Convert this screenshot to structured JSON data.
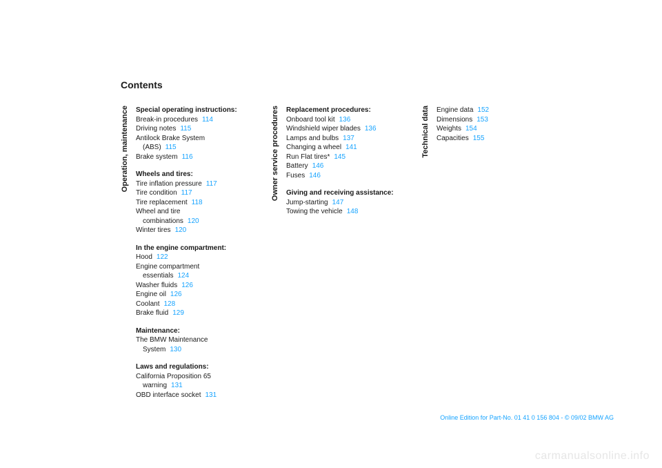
{
  "title": "Contents",
  "col1": {
    "vlabel": "Operation, maintenance",
    "sections": [
      {
        "head": "Special operating instructions:",
        "items": [
          {
            "label": "Break-in procedures",
            "page": "114"
          },
          {
            "label": "Driving notes",
            "page": "115"
          },
          {
            "label": "Antilock Brake System",
            "cont": "(ABS)",
            "page": "115"
          },
          {
            "label": "Brake system",
            "page": "116"
          }
        ]
      },
      {
        "head": "Wheels and tires:",
        "items": [
          {
            "label": "Tire inflation pressure",
            "page": "117"
          },
          {
            "label": "Tire condition",
            "page": "117"
          },
          {
            "label": "Tire replacement",
            "page": "118"
          },
          {
            "label": "Wheel and tire",
            "cont": "combinations",
            "page": "120"
          },
          {
            "label": "Winter tires",
            "page": "120"
          }
        ]
      },
      {
        "head": "In the engine compartment:",
        "items": [
          {
            "label": "Hood",
            "page": "122"
          },
          {
            "label": "Engine compartment",
            "cont": "essentials",
            "page": "124"
          },
          {
            "label": "Washer fluids",
            "page": "126"
          },
          {
            "label": "Engine oil",
            "page": "126"
          },
          {
            "label": "Coolant",
            "page": "128"
          },
          {
            "label": "Brake fluid",
            "page": "129"
          }
        ]
      },
      {
        "head": "Maintenance:",
        "items": [
          {
            "label": "The BMW Maintenance",
            "cont": "System",
            "page": "130"
          }
        ]
      },
      {
        "head": "Laws and regulations:",
        "items": [
          {
            "label": "California Proposition 65",
            "cont": "warning",
            "page": "131"
          },
          {
            "label": "OBD interface socket",
            "page": "131"
          }
        ]
      }
    ]
  },
  "col2": {
    "vlabel": "Owner service procedures",
    "sections": [
      {
        "head": "Replacement procedures:",
        "items": [
          {
            "label": "Onboard tool kit",
            "page": "136"
          },
          {
            "label": "Windshield wiper blades",
            "page": "136"
          },
          {
            "label": "Lamps and bulbs",
            "page": "137"
          },
          {
            "label": "Changing a wheel",
            "page": "141"
          },
          {
            "label": "Run Flat tires*",
            "page": "145"
          },
          {
            "label": "Battery",
            "page": "146"
          },
          {
            "label": "Fuses",
            "page": "146"
          }
        ]
      },
      {
        "head": "Giving and receiving assistance:",
        "items": [
          {
            "label": "Jump-starting",
            "page": "147"
          },
          {
            "label": "Towing the vehicle",
            "page": "148"
          }
        ]
      }
    ]
  },
  "col3": {
    "vlabel": "Technical data",
    "sections": [
      {
        "head": "",
        "items": [
          {
            "label": "Engine data",
            "page": "152"
          },
          {
            "label": "Dimensions",
            "page": "153"
          },
          {
            "label": "Weights",
            "page": "154"
          },
          {
            "label": "Capacities",
            "page": "155"
          }
        ]
      }
    ]
  },
  "footer": "Online Edition for Part-No. 01 41 0 156 804 - © 09/02 BMW AG",
  "watermark": "carmanualsonline.info"
}
